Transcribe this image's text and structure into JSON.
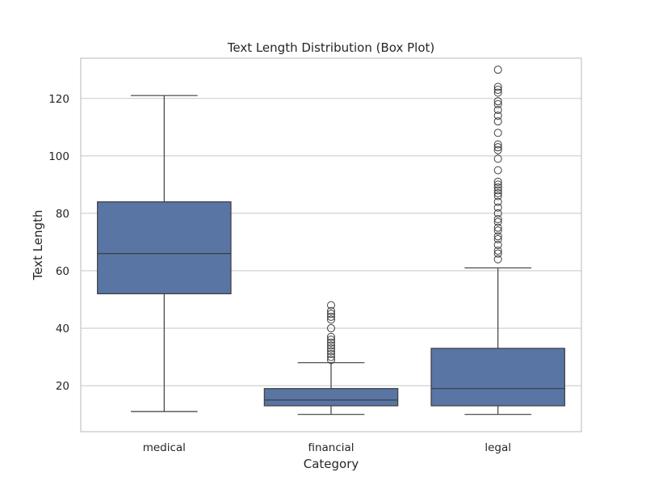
{
  "chart_data": {
    "type": "box",
    "title": "Text Length Distribution (Box Plot)",
    "xlabel": "Category",
    "ylabel": "Text Length",
    "ylim": [
      4,
      134
    ],
    "yticks": [
      20,
      40,
      60,
      80,
      100,
      120
    ],
    "grid": true,
    "box_color": "#5875a4",
    "categories": [
      "medical",
      "financial",
      "legal"
    ],
    "boxes": [
      {
        "category": "medical",
        "whisker_low": 11,
        "q1": 52,
        "median": 66,
        "q3": 84,
        "whisker_high": 121,
        "outliers": []
      },
      {
        "category": "financial",
        "whisker_low": 10,
        "q1": 13,
        "median": 15,
        "q3": 19,
        "whisker_high": 28,
        "outliers": [
          29,
          30,
          31,
          32,
          33,
          34,
          35,
          36,
          37,
          40,
          43,
          44,
          45,
          46,
          48
        ]
      },
      {
        "category": "legal",
        "whisker_low": 10,
        "q1": 13,
        "median": 19,
        "q3": 33,
        "whisker_high": 61,
        "outliers": [
          64,
          66,
          67,
          69,
          71,
          72,
          74,
          75,
          77,
          78,
          80,
          82,
          84,
          86,
          87,
          88,
          89,
          90,
          91,
          95,
          99,
          102,
          103,
          104,
          108,
          112,
          114,
          116,
          118,
          119,
          122,
          123,
          124,
          130
        ]
      }
    ]
  }
}
